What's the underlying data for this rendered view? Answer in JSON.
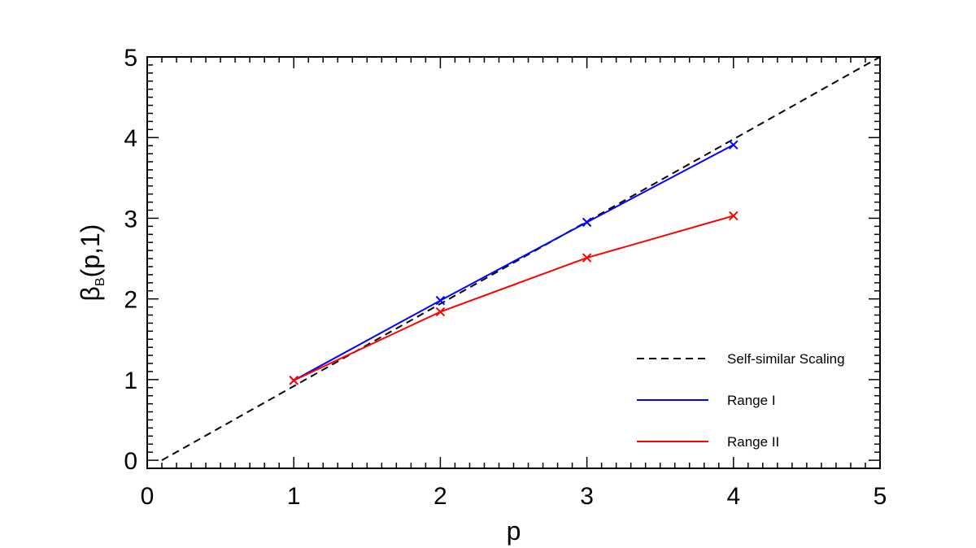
{
  "chart_data": {
    "type": "line",
    "xlabel": "p",
    "ylabel": {
      "main": "β",
      "subscript": "B",
      "suffix": "(p,1)"
    },
    "xlim": [
      0,
      5
    ],
    "ylim": [
      -0.1,
      5
    ],
    "xticks": [
      "0",
      "1",
      "2",
      "3",
      "4",
      "5"
    ],
    "yticks": [
      "0",
      "1",
      "2",
      "3",
      "4",
      "5"
    ],
    "grid": false,
    "legend_position": "bottom-right",
    "series": [
      {
        "name": "Self-similar Scaling",
        "color": "#000000",
        "style": "dashed",
        "markers": false,
        "x": [
          0.1,
          5
        ],
        "y": [
          0,
          5
        ]
      },
      {
        "name": "Range I",
        "color": "#0000ff",
        "style": "solid",
        "markers": true,
        "x": [
          1,
          2,
          3,
          4
        ],
        "y": [
          0.99,
          1.98,
          2.95,
          3.91
        ]
      },
      {
        "name": "Range II",
        "color": "#ff0000",
        "style": "solid",
        "markers": true,
        "x": [
          1,
          2,
          3,
          4
        ],
        "y": [
          0.99,
          1.84,
          2.51,
          3.03
        ]
      }
    ]
  }
}
